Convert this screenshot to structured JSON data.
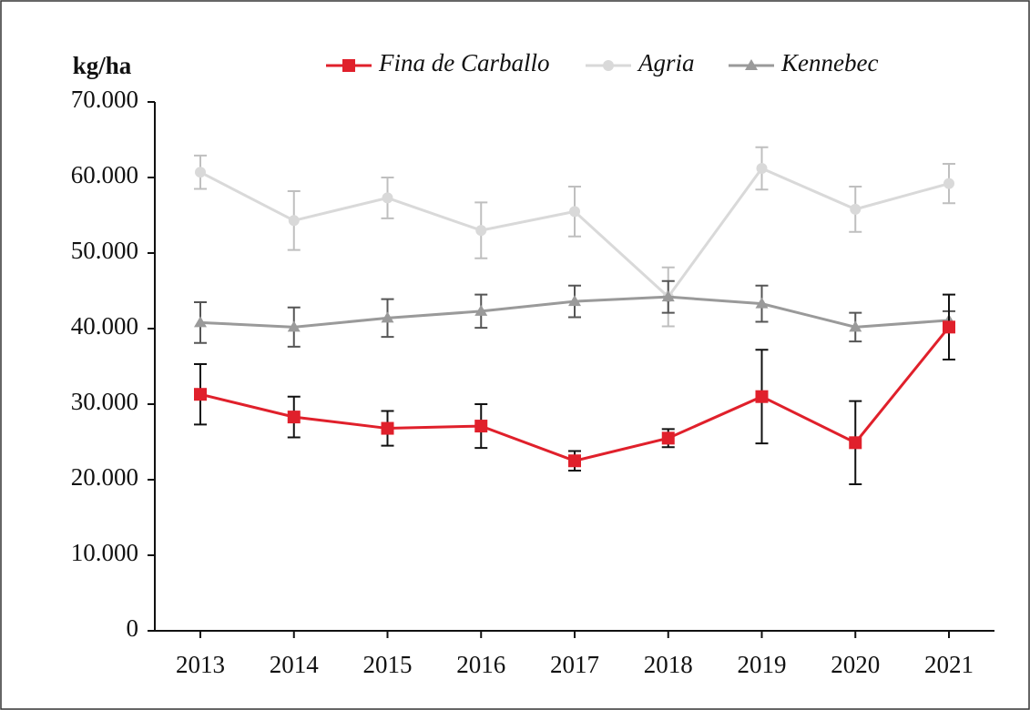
{
  "chart_data": {
    "type": "line",
    "ylabel": "kg/ha",
    "categories": [
      "2013",
      "2014",
      "2015",
      "2016",
      "2017",
      "2018",
      "2019",
      "2020",
      "2021"
    ],
    "series": [
      {
        "name": "Fina de Carballo",
        "color": "#e0202b",
        "marker": "square",
        "error_color": "#111111",
        "values": [
          31300,
          28300,
          26800,
          27100,
          22500,
          25500,
          31000,
          24900,
          40200
        ],
        "errors": [
          4000,
          2700,
          2300,
          2900,
          1300,
          1200,
          6200,
          5500,
          4300
        ]
      },
      {
        "name": "Agria",
        "color": "#d9d9d9",
        "marker": "circle",
        "error_color": "#bfbfbf",
        "values": [
          60700,
          54300,
          57300,
          53000,
          55500,
          44200,
          61200,
          55800,
          59200
        ],
        "errors": [
          2200,
          3900,
          2700,
          3700,
          3300,
          3900,
          2800,
          3000,
          2600
        ]
      },
      {
        "name": "Kennebec",
        "color": "#9a9a9a",
        "marker": "triangle",
        "error_color": "#555555",
        "values": [
          40800,
          40200,
          41400,
          42300,
          43600,
          44200,
          43300,
          40200,
          41100
        ],
        "errors": [
          2700,
          2600,
          2500,
          2200,
          2100,
          2100,
          2400,
          1900,
          1200
        ]
      }
    ],
    "ylim": [
      0,
      70000
    ],
    "yticks": [
      0,
      {
        "value": 10000,
        "label": "10.000"
      },
      {
        "value": 20000,
        "label": "20.000"
      },
      {
        "value": 30000,
        "label": "30.000"
      },
      {
        "value": 40000,
        "label": "40.000"
      },
      {
        "value": 50000,
        "label": "50.000"
      },
      {
        "value": 60000,
        "label": "60.000"
      },
      {
        "value": 70000,
        "label": "70.000"
      }
    ],
    "grid": false,
    "legend": "top"
  }
}
